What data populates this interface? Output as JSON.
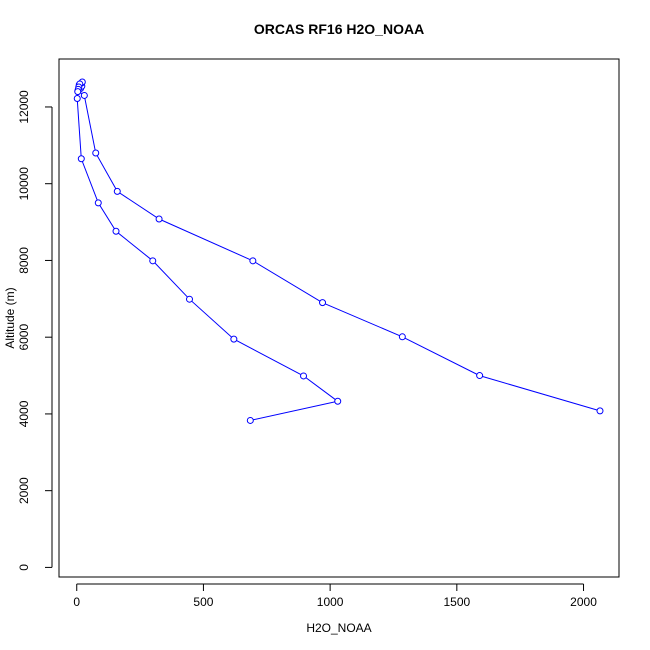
{
  "chart_data": {
    "type": "line",
    "title": "ORCAS RF16 H2O_NOAA",
    "xlabel": "H2O_NOAA",
    "ylabel": "Altitude (m)",
    "xlim": [
      -70,
      2140
    ],
    "ylim": [
      -250,
      13250
    ],
    "xticks": [
      0,
      500,
      1000,
      1500,
      2000
    ],
    "yticks": [
      0,
      2000,
      4000,
      6000,
      8000,
      10000,
      12000
    ],
    "grid": false,
    "series": [
      {
        "color": "#0000ff",
        "points": [
          [
            2065,
            4080
          ],
          [
            1590,
            5000
          ],
          [
            1285,
            6010
          ],
          [
            970,
            6900
          ],
          [
            695,
            7990
          ],
          [
            325,
            9080
          ],
          [
            160,
            9800
          ],
          [
            75,
            10800
          ],
          [
            30,
            12300
          ],
          [
            5,
            12420
          ],
          [
            15,
            12480
          ],
          [
            20,
            12540
          ],
          [
            10,
            12580
          ],
          [
            18,
            12620
          ],
          [
            22,
            12650
          ],
          [
            12,
            12600
          ],
          [
            8,
            12520
          ],
          [
            6,
            12460
          ],
          [
            4,
            12400
          ],
          [
            2,
            12220
          ],
          [
            18,
            10650
          ],
          [
            85,
            9500
          ],
          [
            155,
            8760
          ],
          [
            300,
            7990
          ],
          [
            445,
            6990
          ],
          [
            620,
            5950
          ],
          [
            895,
            4990
          ],
          [
            1030,
            4330
          ],
          [
            685,
            3830
          ]
        ]
      }
    ]
  }
}
